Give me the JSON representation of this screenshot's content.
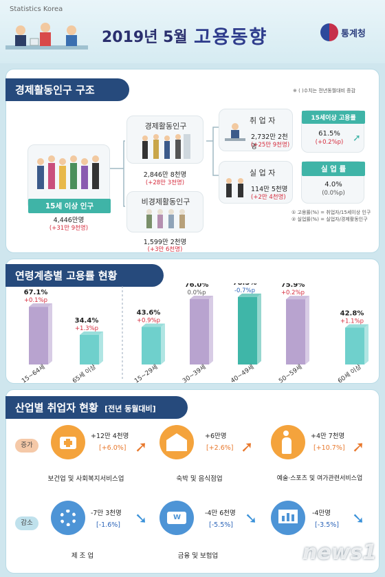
{
  "header": {
    "brand_en": "Statistics Korea",
    "title_date": "2019년 5월",
    "title_main": "고용동향",
    "agency": "통계청"
  },
  "section1": {
    "title": "경제활동인구 구조",
    "note": "※ (  )수치는 전년동월대비 증감",
    "pop15": {
      "label": "15세 이상 인구",
      "value": "4,446만명",
      "change": "(+31만 9천명)"
    },
    "active": {
      "label": "경제활동인구",
      "value": "2,846만 8천명",
      "change": "(+28만 3천명)"
    },
    "inactive": {
      "label": "비경제활동인구",
      "value": "1,599만 2천명",
      "change": "(+3만 6천명)"
    },
    "employed": {
      "label": "취 업 자",
      "value": "2,732만 2천명",
      "change": "(+25만 9천명)"
    },
    "unemployed": {
      "label": "실 업 자",
      "value": "114만 5천명",
      "change": "(+2만 4천명)"
    },
    "emp_rate": {
      "label": "15세이상 고용률",
      "value": "61.5%",
      "change": "(+0.2%p)"
    },
    "unemp_rate": {
      "label": "실 업 률",
      "value": "4.0%",
      "change": "(0.0%p)"
    },
    "footnote1": "① 고용률(%) = 취업자/15세이상 인구",
    "footnote2": "② 실업률(%) = 실업자/경제활동인구"
  },
  "section2": {
    "title": "연령계층별 고용률 현황"
  },
  "chart_data": {
    "type": "bar",
    "title": "연령계층별 고용률 현황",
    "categories": [
      "15~64세",
      "65세 이상",
      "15~29세",
      "30~39세",
      "40~49세",
      "50~59세",
      "60세 이상"
    ],
    "values": [
      67.1,
      34.4,
      43.6,
      76.0,
      78.5,
      75.9,
      42.8
    ],
    "value_labels": [
      "67.1%",
      "34.4%",
      "43.6%",
      "76.0%",
      "78.5%",
      "75.9%",
      "42.8%"
    ],
    "changes": [
      "+0.1%p",
      "+1.3%p",
      "+0.9%p",
      "0.0%p",
      "-0.7%p",
      "+0.2%p",
      "+1.1%p"
    ],
    "colors": [
      "#b8a3cf",
      "#6fd0cc",
      "#6fd0cc",
      "#b8a3cf",
      "#3fb6a8",
      "#b8a3cf",
      "#6fd0cc"
    ]
  },
  "section3": {
    "title": "산업별 취업자 현황",
    "subtitle": "[전년 동월대비]",
    "increase_label": "증가",
    "decrease_label": "감소",
    "increase": [
      {
        "name": "보건업 및 사회복지서비스업",
        "value": "+12만 4천명",
        "pct": "[+6.0%]",
        "icon": "medical-kit-icon"
      },
      {
        "name": "숙박 및 음식점업",
        "value": "+6만명",
        "pct": "[+2.6%]",
        "icon": "hotel-icon"
      },
      {
        "name": "예술·스포츠 및 여가관련서비스업",
        "value": "+4만 7천명",
        "pct": "[+10.7%]",
        "icon": "dance-icon"
      }
    ],
    "decrease": [
      {
        "name": "제 조 업",
        "value": "-7만 3천명",
        "pct": "[-1.6%]",
        "icon": "gear-icon"
      },
      {
        "name": "금융 및 보험업",
        "value": "-4만 6천명",
        "pct": "[-5.5%]",
        "icon": "money-icon"
      },
      {
        "name": "",
        "value": "-4만명",
        "pct": "[-3.5%]",
        "icon": "chart-board-icon"
      }
    ]
  },
  "watermark": "news1"
}
